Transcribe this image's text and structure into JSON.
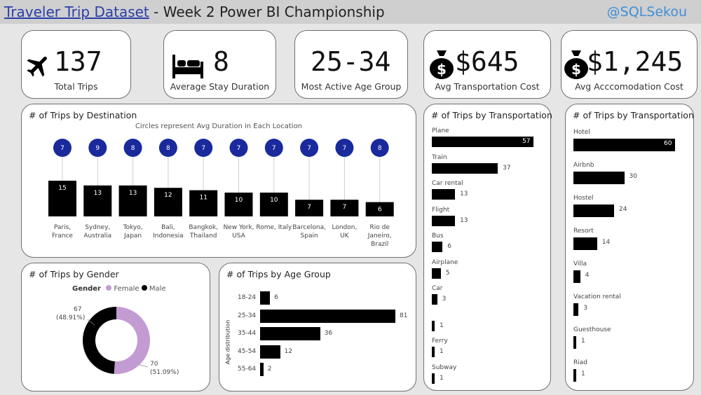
{
  "header": {
    "title_link": "Traveler Trip Dataset",
    "title_rest": " - Week 2 Power BI Championship",
    "handle": "@SQLSekou"
  },
  "kpis": [
    {
      "icon": "airplane-icon",
      "value": "137",
      "label": "Total Trips"
    },
    {
      "icon": "bed-icon",
      "value": "8",
      "label": "Average Stay Duration"
    },
    {
      "icon": "",
      "value": "25-34",
      "label": "Most Active Age Group"
    },
    {
      "icon": "money-bag-icon",
      "value": "$645",
      "label": "Avg Transportation Cost"
    },
    {
      "icon": "money-bag-icon",
      "value": "$1,245",
      "label": "Avg Acccomodation Cost"
    }
  ],
  "colors": {
    "bar": "#000000",
    "circle": "#1a2a9c",
    "female": "#c39bd3",
    "male": "#000000"
  },
  "destination_chart": {
    "title": "# of Trips by Destination",
    "subtitle": "Circles represent Avg Duration in Each Location"
  },
  "transport_chart": {
    "title": "# of Trips by Transportation"
  },
  "accom_chart": {
    "title": "# of Trips by Transportation"
  },
  "gender_chart": {
    "title": "# of Trips by Gender",
    "legend_title": "Gender",
    "female_label": "Female",
    "male_label": "Male",
    "male_top": "67",
    "male_pct": "(48.91%)",
    "female_top": "70",
    "female_pct": "(51.09%)"
  },
  "age_chart": {
    "title": "# of Trips by Age Group",
    "ylabel": "Age distribution"
  },
  "chart_data": [
    {
      "type": "bar",
      "title": "# of Trips by Destination",
      "categories": [
        "Paris, France",
        "Sydney, Australia",
        "Tokyo, Japan",
        "Bali, Indonesia",
        "Bangkok, Thailand",
        "New York, USA",
        "Rome, Italy",
        "Barcelona, Spain",
        "London, UK",
        "Rio de Janeiro, Brazil"
      ],
      "category_lines": [
        [
          "Paris,",
          "France"
        ],
        [
          "Sydney,",
          "Australia"
        ],
        [
          "Tokyo,",
          "Japan"
        ],
        [
          "Bali,",
          "Indonesia"
        ],
        [
          "Bangkok,",
          "Thailand"
        ],
        [
          "New York,",
          "USA"
        ],
        [
          "Rome, Italy"
        ],
        [
          "Barcelona,",
          "Spain"
        ],
        [
          "London,",
          "UK"
        ],
        [
          "Rio de",
          "Janeiro,",
          "Brazil"
        ]
      ],
      "series": [
        {
          "values": [
            15,
            13,
            13,
            12,
            11,
            10,
            10,
            7,
            7,
            6
          ]
        },
        {
          "values": [
            7,
            9,
            8,
            8,
            7,
            7,
            7,
            7,
            7,
            8
          ]
        }
      ]
    },
    {
      "type": "bar",
      "title": "# of Trips by Transportation",
      "categories": [
        "Plane",
        "Train",
        "Car rental",
        "Flight",
        "Bus",
        "Airplane",
        "Car",
        "",
        "Ferry",
        "Subway"
      ],
      "values": [
        57,
        37,
        13,
        13,
        6,
        5,
        3,
        1,
        1,
        1
      ]
    },
    {
      "type": "bar",
      "title": "# of Trips by Transportation",
      "categories": [
        "Hotel",
        "Airbnb",
        "Hostel",
        "Resort",
        "Villa",
        "Vacation rental",
        "Guesthouse",
        "Riad"
      ],
      "values": [
        60,
        30,
        24,
        14,
        4,
        3,
        1,
        1
      ]
    },
    {
      "type": "pie",
      "title": "# of Trips by Gender",
      "categories": [
        "Female",
        "Male"
      ],
      "values": [
        70,
        67
      ]
    },
    {
      "type": "bar",
      "title": "# of Trips by Age Group",
      "ylabel": "Age distribution",
      "categories": [
        "18-24",
        "25-34",
        "35-44",
        "45-54",
        "55-64"
      ],
      "values": [
        6,
        81,
        36,
        12,
        2
      ]
    }
  ]
}
